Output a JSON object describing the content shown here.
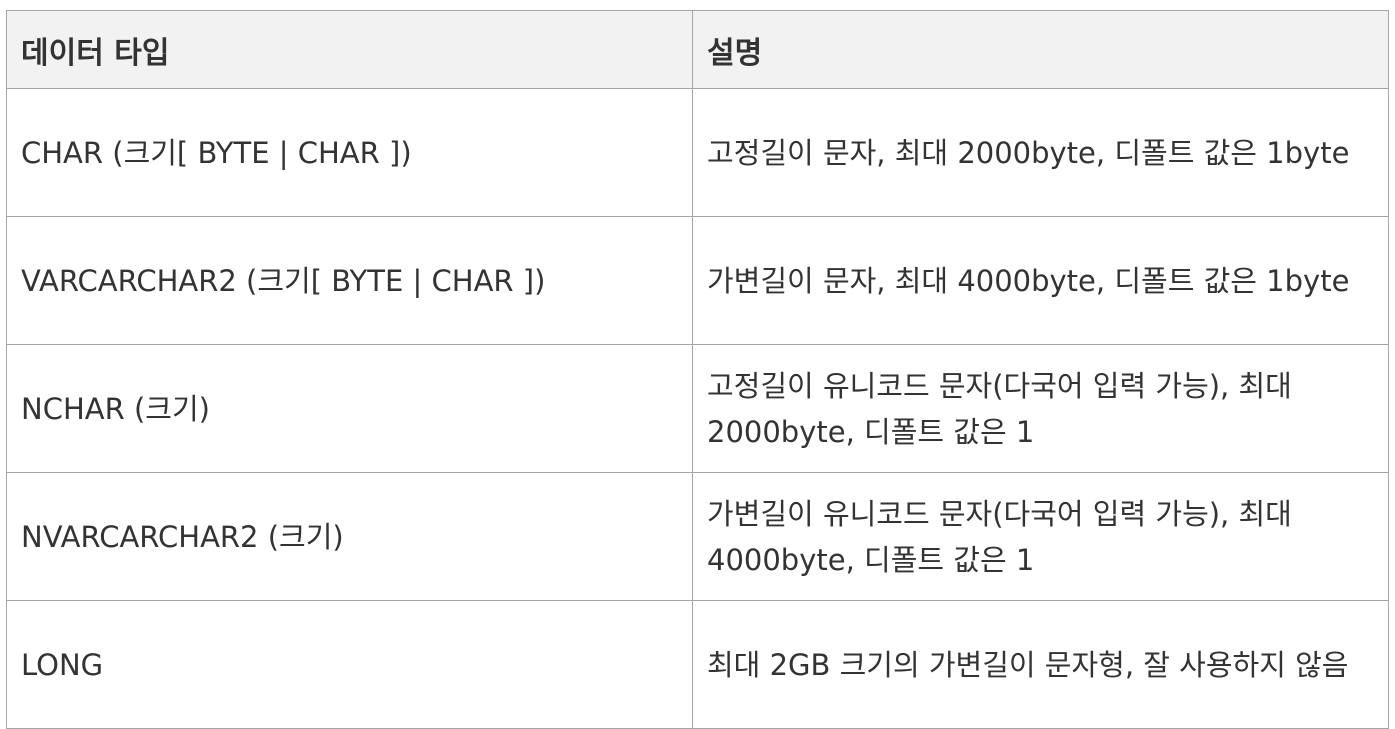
{
  "table": {
    "headers": [
      "데이터 타입",
      "설명"
    ],
    "rows": [
      {
        "type": "CHAR (크기[ BYTE | CHAR ])",
        "desc": "고정길이 문자, 최대 2000byte, 디폴트 값은 1byte"
      },
      {
        "type": "VARCARCHAR2 (크기[ BYTE | CHAR ])",
        "desc": "가변길이 문자, 최대 4000byte, 디폴트 값은 1byte"
      },
      {
        "type": "NCHAR (크기)",
        "desc": "고정길이 유니코드 문자(다국어 입력 가능), 최대 2000byte, 디폴트 값은 1"
      },
      {
        "type": "NVARCARCHAR2 (크기)",
        "desc": "가변길이 유니코드 문자(다국어 입력 가능), 최대 4000byte, 디폴트 값은 1"
      },
      {
        "type": "LONG",
        "desc": "최대 2GB 크기의 가변길이 문자형, 잘 사용하지 않음"
      }
    ]
  },
  "colors": {
    "header_bg": "#f2f2f2",
    "border": "#a6a6a6",
    "text": "#333333"
  }
}
